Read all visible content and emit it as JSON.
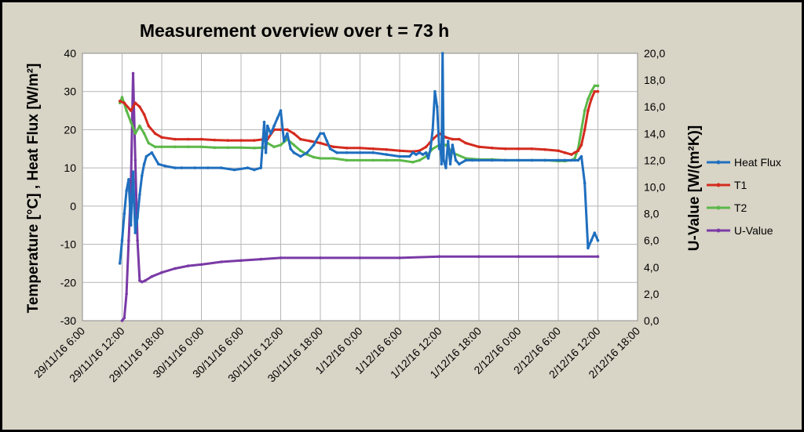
{
  "chart_data": {
    "type": "line",
    "title": "Measurement overview over t = 73 h",
    "ylabel_left": "Temperature [°C] ,  Heat Flux [W/m²]",
    "ylabel_right": "U-Value [W/(m²K)]",
    "xlabel": "",
    "ylim_left": [
      -30,
      40
    ],
    "yticks_left": [
      "-30",
      "-20",
      "-10",
      "0",
      "10",
      "20",
      "30",
      "40"
    ],
    "ylim_right": [
      0,
      20
    ],
    "yticks_right": [
      "0,0",
      "2,0",
      "4,0",
      "6,0",
      "8,0",
      "10,0",
      "12,0",
      "14,0",
      "16,0",
      "18,0",
      "20,0"
    ],
    "xlim": [
      "2016-11-29 06:00",
      "2016-12-02 18:00"
    ],
    "xticks": [
      "29/11/16 6:00",
      "29/11/16 12:00",
      "29/11/16 18:00",
      "30/11/16 0:00",
      "30/11/16 6:00",
      "30/11/16 12:00",
      "30/11/16 18:00",
      "1/12/16 0:00",
      "1/12/16 6:00",
      "1/12/16 12:00",
      "1/12/16 18:00",
      "2/12/16 0:00",
      "2/12/16 6:00",
      "2/12/16 12:00",
      "2/12/16 18:00"
    ],
    "grid": true,
    "legend_position": "right",
    "series": [
      {
        "name": "Heat Flux",
        "axis": "left",
        "color": "#1f6fbf",
        "x": [
          "2016-11-29 11:40",
          "2016-11-29 12:00",
          "2016-11-29 12:20",
          "2016-11-29 12:40",
          "2016-11-29 13:00",
          "2016-11-29 13:20",
          "2016-11-29 13:40",
          "2016-11-29 14:00",
          "2016-11-29 14:20",
          "2016-11-29 14:40",
          "2016-11-29 15:00",
          "2016-11-29 15:20",
          "2016-11-29 15:40",
          "2016-11-29 16:30",
          "2016-11-29 17:30",
          "2016-11-29 18:30",
          "2016-11-29 20:00",
          "2016-11-29 21:00",
          "2016-11-29 23:00",
          "2016-11-30 01:00",
          "2016-11-30 03:00",
          "2016-11-30 05:00",
          "2016-11-30 07:00",
          "2016-11-30 08:00",
          "2016-11-30 09:00",
          "2016-11-30 09:30",
          "2016-11-30 09:45",
          "2016-11-30 10:00",
          "2016-11-30 10:30",
          "2016-11-30 11:00",
          "2016-11-30 11:30",
          "2016-11-30 12:00",
          "2016-11-30 12:30",
          "2016-11-30 13:00",
          "2016-11-30 13:30",
          "2016-11-30 14:00",
          "2016-11-30 15:00",
          "2016-11-30 16:00",
          "2016-11-30 17:00",
          "2016-11-30 18:00",
          "2016-11-30 18:30",
          "2016-11-30 19:00",
          "2016-11-30 19:30",
          "2016-11-30 20:30",
          "2016-11-30 22:00",
          "2016-12-01 00:00",
          "2016-12-01 02:00",
          "2016-12-01 04:00",
          "2016-12-01 06:00",
          "2016-12-01 07:30",
          "2016-12-01 08:00",
          "2016-12-01 08:30",
          "2016-12-01 09:00",
          "2016-12-01 09:30",
          "2016-12-01 10:00",
          "2016-12-01 10:20",
          "2016-12-01 10:40",
          "2016-12-01 11:00",
          "2016-12-01 11:20",
          "2016-12-01 11:40",
          "2016-12-01 12:00",
          "2016-12-01 12:10",
          "2016-12-01 12:20",
          "2016-12-01 12:30",
          "2016-12-01 12:40",
          "2016-12-01 13:00",
          "2016-12-01 13:20",
          "2016-12-01 13:40",
          "2016-12-01 14:00",
          "2016-12-01 14:30",
          "2016-12-01 15:00",
          "2016-12-01 16:00",
          "2016-12-01 17:00",
          "2016-12-01 18:00",
          "2016-12-01 20:00",
          "2016-12-01 22:00",
          "2016-12-02 00:00",
          "2016-12-02 02:00",
          "2016-12-02 04:00",
          "2016-12-02 06:00",
          "2016-12-02 07:00",
          "2016-12-02 08:00",
          "2016-12-02 08:30",
          "2016-12-02 09:00",
          "2016-12-02 09:30",
          "2016-12-02 10:00",
          "2016-12-02 10:30",
          "2016-12-02 11:00",
          "2016-12-02 11:30",
          "2016-12-02 12:00"
        ],
        "values": [
          -15,
          -9,
          -2,
          4,
          7,
          -5,
          9,
          -7,
          -3,
          3,
          8,
          11,
          13,
          14,
          11,
          10.5,
          10,
          10,
          10,
          10,
          10,
          9.5,
          10,
          9.5,
          10,
          22,
          14,
          21,
          19,
          21,
          23,
          25,
          17,
          19,
          15,
          14,
          13,
          14,
          16,
          19,
          19,
          17,
          15,
          14,
          14,
          14,
          14,
          13.5,
          13,
          13,
          14,
          13.5,
          14,
          13.5,
          14,
          12.5,
          15,
          20,
          30,
          26,
          15,
          16,
          11,
          40,
          12,
          10,
          17,
          11,
          16,
          12,
          11,
          12,
          12,
          12,
          12,
          12,
          12,
          12,
          12,
          12,
          12,
          12,
          12,
          12,
          13,
          6,
          -11,
          -9,
          -7,
          -9
        ]
      },
      {
        "name": "T1",
        "axis": "left",
        "color": "#d42b1f",
        "x": [
          "2016-11-29 11:40",
          "2016-11-29 12:20",
          "2016-11-29 13:20",
          "2016-11-29 14:00",
          "2016-11-29 14:40",
          "2016-11-29 15:20",
          "2016-11-29 16:00",
          "2016-11-29 17:00",
          "2016-11-29 18:00",
          "2016-11-29 20:00",
          "2016-11-29 22:00",
          "2016-11-30 00:00",
          "2016-11-30 02:00",
          "2016-11-30 04:00",
          "2016-11-30 06:00",
          "2016-11-30 08:00",
          "2016-11-30 09:30",
          "2016-11-30 10:00",
          "2016-11-30 11:00",
          "2016-11-30 12:00",
          "2016-11-30 13:00",
          "2016-11-30 14:00",
          "2016-11-30 15:00",
          "2016-11-30 16:30",
          "2016-11-30 18:00",
          "2016-11-30 20:00",
          "2016-11-30 22:00",
          "2016-12-01 00:00",
          "2016-12-01 02:00",
          "2016-12-01 04:00",
          "2016-12-01 06:00",
          "2016-12-01 08:00",
          "2016-12-01 09:00",
          "2016-12-01 10:00",
          "2016-12-01 11:00",
          "2016-12-01 12:00",
          "2016-12-01 13:00",
          "2016-12-01 14:00",
          "2016-12-01 15:00",
          "2016-12-01 16:00",
          "2016-12-01 18:00",
          "2016-12-01 20:00",
          "2016-12-01 22:00",
          "2016-12-02 00:00",
          "2016-12-02 02:00",
          "2016-12-02 04:00",
          "2016-12-02 06:00",
          "2016-12-02 07:00",
          "2016-12-02 08:00",
          "2016-12-02 08:30",
          "2016-12-02 09:00",
          "2016-12-02 09:30",
          "2016-12-02 10:00",
          "2016-12-02 10:30",
          "2016-12-02 11:00",
          "2016-12-02 11:30",
          "2016-12-02 12:00"
        ],
        "values": [
          27.5,
          27,
          25,
          27,
          26,
          24,
          21,
          19,
          18,
          17.5,
          17.5,
          17.5,
          17.3,
          17.2,
          17.2,
          17.2,
          17.5,
          17.5,
          20,
          20,
          20,
          19,
          17.5,
          17,
          16.5,
          15.5,
          15.2,
          15.2,
          15,
          14.8,
          14.5,
          14.3,
          14.5,
          15.5,
          17.5,
          19,
          18,
          17.5,
          17.5,
          16.5,
          15.5,
          15.2,
          15,
          15,
          15,
          14.8,
          14.5,
          14,
          13.5,
          14,
          14.5,
          16,
          20,
          25,
          28,
          30,
          30
        ]
      },
      {
        "name": "T2",
        "axis": "left",
        "color": "#5cb84a",
        "x": [
          "2016-11-29 11:40",
          "2016-11-29 12:00",
          "2016-11-29 12:40",
          "2016-11-29 13:20",
          "2016-11-29 14:00",
          "2016-11-29 14:40",
          "2016-11-29 15:20",
          "2016-11-29 16:00",
          "2016-11-29 17:00",
          "2016-11-29 18:00",
          "2016-11-29 20:00",
          "2016-11-29 22:00",
          "2016-11-30 00:00",
          "2016-11-30 02:00",
          "2016-11-30 04:00",
          "2016-11-30 06:00",
          "2016-11-30 08:00",
          "2016-11-30 09:30",
          "2016-11-30 10:00",
          "2016-11-30 11:00",
          "2016-11-30 12:00",
          "2016-11-30 13:00",
          "2016-11-30 14:00",
          "2016-11-30 15:00",
          "2016-11-30 16:00",
          "2016-11-30 17:00",
          "2016-11-30 18:00",
          "2016-11-30 20:00",
          "2016-11-30 22:00",
          "2016-12-01 00:00",
          "2016-12-01 02:00",
          "2016-12-01 04:00",
          "2016-12-01 06:00",
          "2016-12-01 08:00",
          "2016-12-01 09:00",
          "2016-12-01 10:00",
          "2016-12-01 11:00",
          "2016-12-01 12:00",
          "2016-12-01 13:00",
          "2016-12-01 14:00",
          "2016-12-01 16:00",
          "2016-12-01 18:00",
          "2016-12-01 20:00",
          "2016-12-01 22:00",
          "2016-12-02 00:00",
          "2016-12-02 02:00",
          "2016-12-02 04:00",
          "2016-12-02 06:00",
          "2016-12-02 07:00",
          "2016-12-02 08:00",
          "2016-12-02 08:30",
          "2016-12-02 09:00",
          "2016-12-02 09:30",
          "2016-12-02 10:00",
          "2016-12-02 10:30",
          "2016-12-02 11:00",
          "2016-12-02 11:30",
          "2016-12-02 12:00"
        ],
        "values": [
          27,
          28.5,
          25,
          22,
          19,
          21,
          19,
          16.5,
          15.5,
          15.5,
          15.5,
          15.5,
          15.5,
          15.3,
          15.3,
          15.3,
          15.2,
          15.3,
          16.5,
          15.5,
          16,
          17.5,
          16,
          14.5,
          13.5,
          12.8,
          12.5,
          12.5,
          12,
          12,
          12,
          12,
          12,
          11.5,
          12,
          13,
          15,
          16,
          16,
          14,
          12.5,
          12.2,
          12.2,
          12,
          12,
          12,
          12,
          11.8,
          11.8,
          12,
          12.5,
          15,
          20,
          25,
          28,
          30,
          31.5,
          31.5
        ]
      },
      {
        "name": "U-Value",
        "axis": "right",
        "color": "#7a3aa6",
        "x": [
          "2016-11-29 12:00",
          "2016-11-29 12:20",
          "2016-11-29 12:40",
          "2016-11-29 13:00",
          "2016-11-29 13:20",
          "2016-11-29 13:40",
          "2016-11-29 14:00",
          "2016-11-29 14:20",
          "2016-11-29 14:40",
          "2016-11-29 15:00",
          "2016-11-29 15:30",
          "2016-11-29 16:30",
          "2016-11-29 18:00",
          "2016-11-29 20:00",
          "2016-11-29 22:00",
          "2016-11-30 00:00",
          "2016-11-30 03:00",
          "2016-11-30 06:00",
          "2016-11-30 09:00",
          "2016-11-30 12:00",
          "2016-11-30 18:00",
          "2016-12-01 00:00",
          "2016-12-01 06:00",
          "2016-12-01 12:00",
          "2016-12-01 18:00",
          "2016-12-02 00:00",
          "2016-12-02 06:00",
          "2016-12-02 12:00"
        ],
        "values": [
          0.0,
          0.2,
          2.0,
          6.0,
          10.0,
          18.5,
          12.0,
          6.0,
          3.0,
          2.9,
          3.0,
          3.3,
          3.6,
          3.9,
          4.1,
          4.2,
          4.4,
          4.5,
          4.6,
          4.7,
          4.7,
          4.7,
          4.7,
          4.8,
          4.8,
          4.8,
          4.8,
          4.8
        ]
      }
    ]
  }
}
